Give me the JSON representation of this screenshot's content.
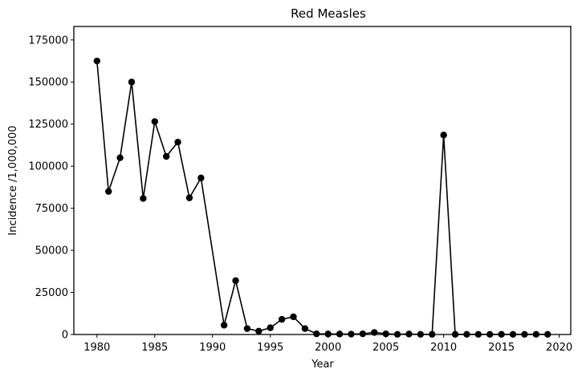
{
  "chart_data": {
    "type": "line",
    "title": "Red Measles",
    "xlabel": "Year",
    "ylabel": "Incidence /1,000,000",
    "xlim": [
      1978,
      2021
    ],
    "ylim": [
      0,
      183000
    ],
    "xticks": [
      1980,
      1985,
      1990,
      1995,
      2000,
      2005,
      2010,
      2015,
      2020
    ],
    "yticks": [
      0,
      25000,
      50000,
      75000,
      100000,
      125000,
      150000,
      175000
    ],
    "grid": false,
    "marker": "circle",
    "line_color": "#000000",
    "series": [
      {
        "x": [
          1980,
          1981,
          1982,
          1983,
          1984,
          1985,
          1986,
          1987,
          1988,
          1989,
          1991,
          1992,
          1993,
          1994,
          1995,
          1996,
          1997,
          1998,
          1999,
          2000,
          2001,
          2002,
          2003,
          2004,
          2005,
          2006,
          2007,
          2008,
          2009,
          2010,
          2011,
          2012,
          2013,
          2014,
          2015,
          2016,
          2017,
          2018,
          2019
        ],
        "values": [
          162500,
          85000,
          105000,
          150000,
          80800,
          126500,
          105800,
          114300,
          81200,
          93000,
          5500,
          32000,
          3500,
          2000,
          4000,
          9000,
          10500,
          3500,
          400,
          300,
          300,
          200,
          400,
          1200,
          400,
          100,
          300,
          100,
          100,
          118500,
          100,
          100,
          100,
          100,
          100,
          100,
          100,
          100,
          100
        ]
      }
    ]
  }
}
